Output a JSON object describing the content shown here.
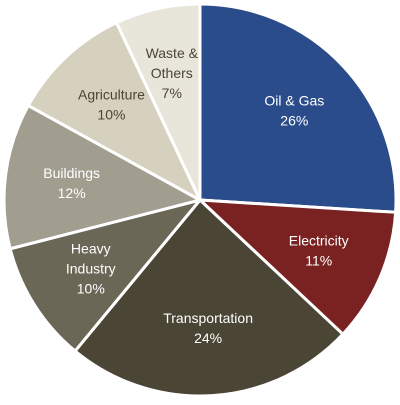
{
  "chart_data": {
    "type": "pie",
    "title": "",
    "slices": [
      {
        "label": [
          "Oil & Gas"
        ],
        "value": 26,
        "value_label": "26%",
        "color": "#2B4C8A",
        "text_color": "#ffffff"
      },
      {
        "label": [
          "Electricity"
        ],
        "value": 11,
        "value_label": "11%",
        "color": "#7A2222",
        "text_color": "#ffffff"
      },
      {
        "label": [
          "Transportation"
        ],
        "value": 24,
        "value_label": "24%",
        "color": "#4A4535",
        "text_color": "#ffffff"
      },
      {
        "label": [
          "Heavy",
          "Industry"
        ],
        "value": 10,
        "value_label": "10%",
        "color": "#6B6757",
        "text_color": "#ffffff"
      },
      {
        "label": [
          "Buildings"
        ],
        "value": 12,
        "value_label": "12%",
        "color": "#A19E90",
        "text_color": "#ffffff"
      },
      {
        "label": [
          "Agriculture"
        ],
        "value": 10,
        "value_label": "10%",
        "color": "#D5D1BE",
        "text_color": "#4a4535"
      },
      {
        "label": [
          "Waste &",
          "Others"
        ],
        "value": 7,
        "value_label": "7%",
        "color": "#E8E5DA",
        "text_color": "#4a4535"
      }
    ],
    "start": "12 o'clock",
    "direction": "clockwise",
    "legend": "none",
    "separator_color": "#ffffff"
  }
}
